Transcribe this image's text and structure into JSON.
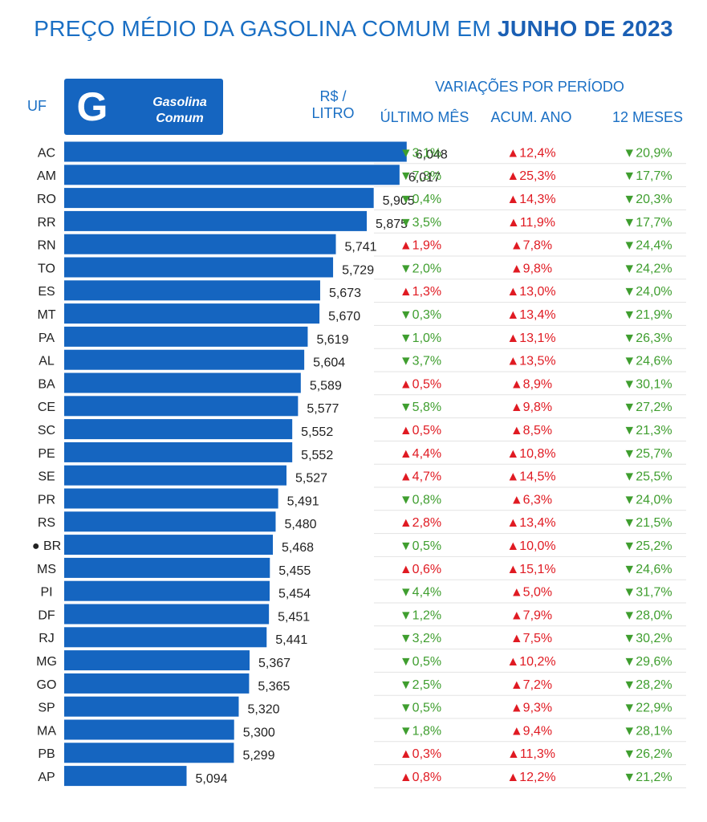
{
  "title": {
    "prefix": "PREÇO MÉDIO DA GASOLINA COMUM EM",
    "bold": "JUNHO DE 2023"
  },
  "headers": {
    "uf": "UF",
    "unit_line1": "R$ /",
    "unit_line2": "LITRO",
    "variations": "VARIAÇÕES POR PERÍODO",
    "col1": "ÚLTIMO MÊS",
    "col2": "ACUM. ANO",
    "col3": "12 MESES"
  },
  "logo": {
    "letter": "G",
    "line1": "Gasolina",
    "line2": "Comum"
  },
  "marker_state": "BR",
  "colors": {
    "bar": "#1565c0",
    "up": "#e01a22",
    "down": "#3f9e2f",
    "header": "#1a6fc4"
  },
  "chart_data": {
    "type": "bar",
    "orientation": "horizontal",
    "categories": [
      "AC",
      "AM",
      "RO",
      "RR",
      "RN",
      "TO",
      "ES",
      "MT",
      "PA",
      "AL",
      "BA",
      "CE",
      "SC",
      "PE",
      "SE",
      "PR",
      "RS",
      "BR",
      "MS",
      "PI",
      "DF",
      "RJ",
      "MG",
      "GO",
      "SP",
      "MA",
      "PB",
      "AP"
    ],
    "values": [
      6.048,
      6.017,
      5.905,
      5.875,
      5.741,
      5.729,
      5.673,
      5.67,
      5.619,
      5.604,
      5.589,
      5.577,
      5.552,
      5.552,
      5.527,
      5.491,
      5.48,
      5.468,
      5.455,
      5.454,
      5.451,
      5.441,
      5.367,
      5.365,
      5.32,
      5.3,
      5.299,
      5.094
    ],
    "value_labels": [
      "6,048",
      "6,017",
      "5,905",
      "5,875",
      "5,741",
      "5,729",
      "5,673",
      "5,670",
      "5,619",
      "5,604",
      "5,589",
      "5,577",
      "5,552",
      "5,552",
      "5,527",
      "5,491",
      "5,480",
      "5,468",
      "5,455",
      "5,454",
      "5,451",
      "5,441",
      "5,367",
      "5,365",
      "5,320",
      "5,300",
      "5,299",
      "5,094"
    ],
    "variations": {
      "ultimo_mes": [
        "▼3,1%",
        "▼7,3%",
        "▼0,4%",
        "▼3,5%",
        "▲1,9%",
        "▼2,0%",
        "▲1,3%",
        "▼0,3%",
        "▼1,0%",
        "▼3,7%",
        "▲0,5%",
        "▼5,8%",
        "▲0,5%",
        "▲4,4%",
        "▲4,7%",
        "▼0,8%",
        "▲2,8%",
        "▼0,5%",
        "▲0,6%",
        "▼4,4%",
        "▼1,2%",
        "▼3,2%",
        "▼0,5%",
        "▼2,5%",
        "▼0,5%",
        "▼1,8%",
        "▲0,3%",
        "▲0,8%"
      ],
      "acum_ano": [
        "▲12,4%",
        "▲25,3%",
        "▲14,3%",
        "▲11,9%",
        "▲7,8%",
        "▲9,8%",
        "▲13,0%",
        "▲13,4%",
        "▲13,1%",
        "▲13,5%",
        "▲8,9%",
        "▲9,8%",
        "▲8,5%",
        "▲10,8%",
        "▲14,5%",
        "▲6,3%",
        "▲13,4%",
        "▲10,0%",
        "▲15,1%",
        "▲5,0%",
        "▲7,9%",
        "▲7,5%",
        "▲10,2%",
        "▲7,2%",
        "▲9,3%",
        "▲9,4%",
        "▲11,3%",
        "▲12,2%"
      ],
      "doze_meses": [
        "▼20,9%",
        "▼17,7%",
        "▼20,3%",
        "▼17,7%",
        "▼24,4%",
        "▼24,2%",
        "▼24,0%",
        "▼21,9%",
        "▼26,3%",
        "▼24,6%",
        "▼30,1%",
        "▼27,2%",
        "▼21,3%",
        "▼25,7%",
        "▼25,5%",
        "▼24,0%",
        "▼21,5%",
        "▼25,2%",
        "▼24,6%",
        "▼31,7%",
        "▼28,0%",
        "▼30,2%",
        "▼29,6%",
        "▼28,2%",
        "▼22,9%",
        "▼28,1%",
        "▼26,2%",
        "▼21,2%"
      ]
    }
  }
}
